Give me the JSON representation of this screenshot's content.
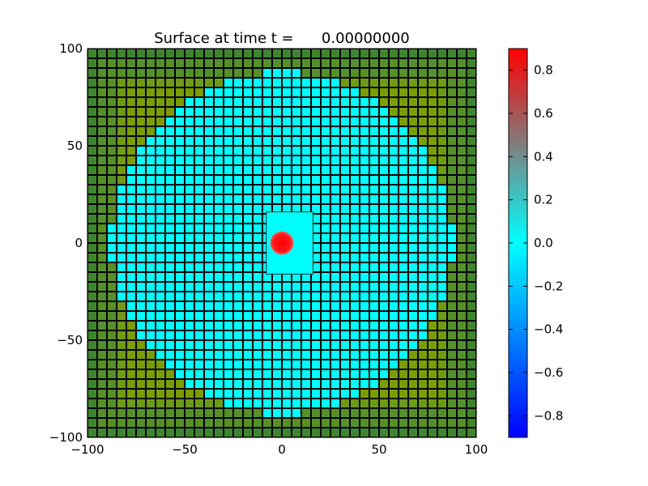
{
  "chart_data": {
    "type": "heatmap",
    "title": "Surface at time t =      0.00000000",
    "xlabel": "",
    "ylabel": "",
    "xlim": [
      -100,
      100
    ],
    "ylim": [
      -100,
      100
    ],
    "x_ticks": [
      -100,
      -50,
      0,
      50,
      100
    ],
    "y_ticks": [
      -100,
      -50,
      0,
      50,
      100
    ],
    "x_tick_labels": [
      "−100",
      "−50",
      "0",
      "50",
      "100"
    ],
    "y_tick_labels": [
      "−100",
      "−50",
      "0",
      "50",
      "100"
    ],
    "surface": {
      "value_in_water": 0.0,
      "hump": {
        "center_x": 0,
        "center_y": 0,
        "radius": 6,
        "peak_value": 0.9
      },
      "water_radius": 88,
      "fine_patch": {
        "x_range": [
          -8,
          16
        ],
        "y_range": [
          -16,
          16
        ]
      }
    },
    "colorbar": {
      "vmin": -0.9,
      "vmax": 0.9,
      "ticks": [
        0.8,
        0.6,
        0.4,
        0.2,
        0.0,
        -0.2,
        -0.4,
        -0.6,
        -0.8
      ],
      "tick_labels": [
        "0.8",
        "0.6",
        "0.4",
        "0.2",
        "0.0",
        "−0.2",
        "−0.4",
        "−0.6",
        "−0.8"
      ],
      "colors": [
        "#0000ff",
        "#00ffff",
        "#ff0000"
      ]
    },
    "land_colors": [
      "#7a9e00",
      "#6d9b16",
      "#55902a",
      "#3f852f"
    ],
    "grid": true
  }
}
